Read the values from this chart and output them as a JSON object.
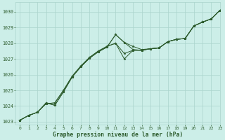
{
  "title": "Graphe pression niveau de la mer (hPa)",
  "background_color": "#cceee8",
  "grid_color": "#aad4cc",
  "line_color": "#2d5c2d",
  "marker_color": "#2d5c2d",
  "xlim": [
    -0.5,
    23
  ],
  "ylim": [
    1022.8,
    1030.6
  ],
  "yticks": [
    1023,
    1024,
    1025,
    1026,
    1027,
    1028,
    1029,
    1030
  ],
  "xticks": [
    0,
    1,
    2,
    3,
    4,
    5,
    6,
    7,
    8,
    9,
    10,
    11,
    12,
    13,
    14,
    15,
    16,
    17,
    18,
    19,
    20,
    21,
    22,
    23
  ],
  "series": [
    [
      1023.1,
      1023.4,
      1023.6,
      1024.2,
      1024.05,
      1024.9,
      1025.85,
      1026.5,
      1027.05,
      1027.45,
      1027.75,
      1028.55,
      1028.05,
      1027.8,
      1027.6,
      1027.65,
      1027.7,
      1028.1,
      1028.25,
      1028.3,
      1029.1,
      1029.35,
      1029.55,
      1030.1
    ],
    [
      1023.1,
      1023.4,
      1023.6,
      1024.2,
      1024.05,
      1024.9,
      1025.85,
      1026.5,
      1027.05,
      1027.45,
      1027.75,
      1028.55,
      1028.05,
      1027.6,
      1027.55,
      1027.65,
      1027.7,
      1028.1,
      1028.25,
      1028.3,
      1029.1,
      1029.35,
      1029.55,
      1030.1
    ],
    [
      1023.1,
      1023.4,
      1023.6,
      1024.15,
      1024.2,
      1025.0,
      1025.9,
      1026.55,
      1027.1,
      1027.5,
      1027.8,
      1028.0,
      1027.35,
      1027.55,
      1027.55,
      1027.65,
      1027.7,
      1028.1,
      1028.25,
      1028.3,
      1029.1,
      1029.35,
      1029.55,
      1030.1
    ],
    [
      1023.1,
      1023.4,
      1023.6,
      1024.15,
      1024.2,
      1025.0,
      1025.9,
      1026.55,
      1027.1,
      1027.5,
      1027.8,
      1028.0,
      1027.0,
      1027.55,
      1027.55,
      1027.65,
      1027.7,
      1028.1,
      1028.25,
      1028.3,
      1029.1,
      1029.35,
      1029.55,
      1030.1
    ]
  ]
}
